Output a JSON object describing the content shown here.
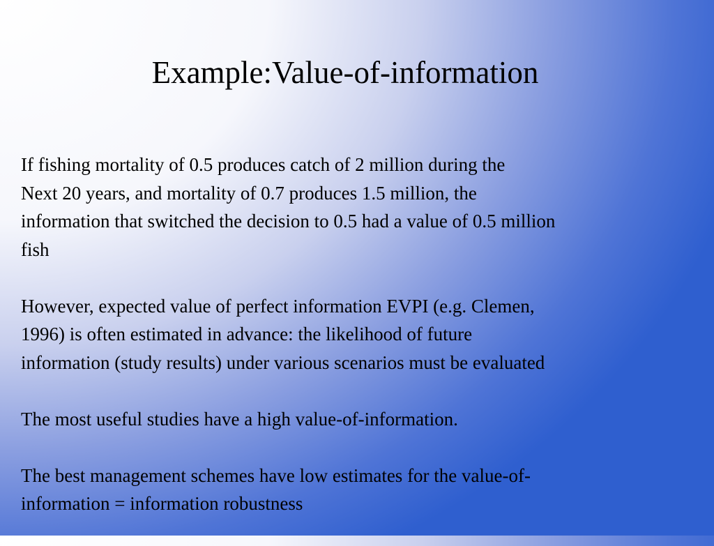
{
  "slide": {
    "title": "Example:Value-of-information",
    "paragraphs": [
      "If fishing mortality of 0.5 produces catch of 2 million during the\nNext 20 years, and mortality of 0.7 produces 1.5 million, the\ninformation that switched the decision  to 0.5 had a value of 0.5 million\nfish",
      "However, expected value of perfect information EVPI (e.g. Clemen,\n1996) is often estimated in advance: the likelihood of future\ninformation (study results) under various scenarios must be evaluated",
      "The most useful studies have a high value-of-information.",
      "The best management schemes have low estimates for the value-of-\ninformation = information robustness"
    ]
  }
}
